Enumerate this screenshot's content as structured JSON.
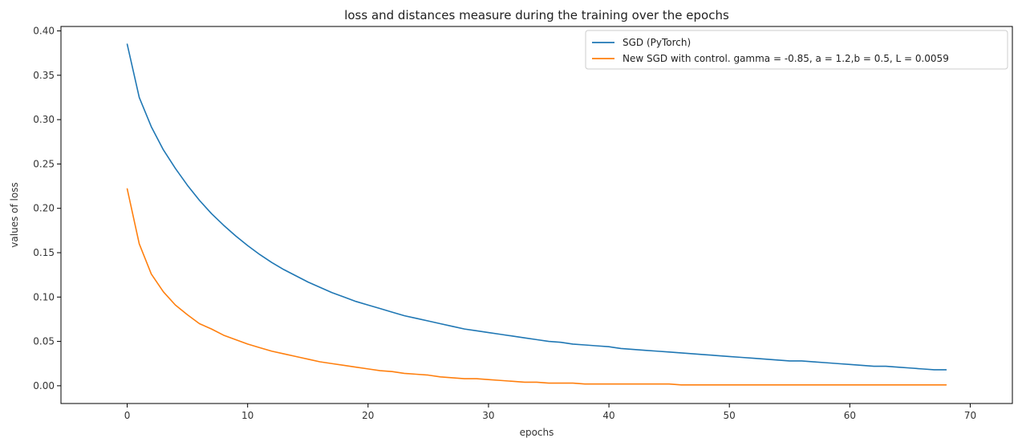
{
  "chart_data": {
    "type": "line",
    "title": "loss and distances measure during the training over the epochs",
    "xlabel": "epochs",
    "ylabel": "values of loss",
    "xlim": [
      -5.5,
      73.5
    ],
    "ylim": [
      -0.02,
      0.405
    ],
    "xticks": [
      0,
      10,
      20,
      30,
      40,
      50,
      60,
      70
    ],
    "xtick_labels": [
      "0",
      "10",
      "20",
      "30",
      "40",
      "50",
      "60",
      "70"
    ],
    "yticks": [
      0.0,
      0.05,
      0.1,
      0.15,
      0.2,
      0.25,
      0.3,
      0.35,
      0.4
    ],
    "ytick_labels": [
      "0.00",
      "0.05",
      "0.10",
      "0.15",
      "0.20",
      "0.25",
      "0.30",
      "0.35",
      "0.40"
    ],
    "grid": false,
    "legend_position": "top-right",
    "series": [
      {
        "name": "SGD (PyTorch)",
        "color": "#1f77b4",
        "x": [
          0,
          1,
          2,
          3,
          4,
          5,
          6,
          7,
          8,
          9,
          10,
          11,
          12,
          13,
          14,
          15,
          16,
          17,
          18,
          19,
          20,
          21,
          22,
          23,
          24,
          25,
          26,
          27,
          28,
          29,
          30,
          31,
          32,
          33,
          34,
          35,
          36,
          37,
          38,
          39,
          40,
          41,
          42,
          43,
          44,
          45,
          46,
          47,
          48,
          49,
          50,
          51,
          52,
          53,
          54,
          55,
          56,
          57,
          58,
          59,
          60,
          61,
          62,
          63,
          64,
          65,
          66,
          67,
          68
        ],
        "values": [
          0.385,
          0.325,
          0.292,
          0.266,
          0.245,
          0.226,
          0.209,
          0.194,
          0.181,
          0.169,
          0.158,
          0.148,
          0.139,
          0.131,
          0.124,
          0.117,
          0.111,
          0.105,
          0.1,
          0.095,
          0.091,
          0.087,
          0.083,
          0.079,
          0.076,
          0.073,
          0.07,
          0.067,
          0.064,
          0.062,
          0.06,
          0.058,
          0.056,
          0.054,
          0.052,
          0.05,
          0.049,
          0.047,
          0.046,
          0.045,
          0.044,
          0.042,
          0.041,
          0.04,
          0.039,
          0.038,
          0.037,
          0.036,
          0.035,
          0.034,
          0.033,
          0.032,
          0.031,
          0.03,
          0.029,
          0.028,
          0.028,
          0.027,
          0.026,
          0.025,
          0.024,
          0.023,
          0.022,
          0.022,
          0.021,
          0.02,
          0.019,
          0.018,
          0.018
        ]
      },
      {
        "name": "New SGD with control. gamma = -0.85, a = 1.2,b = 0.5, L = 0.0059",
        "color": "#ff7f0e",
        "x": [
          0,
          1,
          2,
          3,
          4,
          5,
          6,
          7,
          8,
          9,
          10,
          11,
          12,
          13,
          14,
          15,
          16,
          17,
          18,
          19,
          20,
          21,
          22,
          23,
          24,
          25,
          26,
          27,
          28,
          29,
          30,
          31,
          32,
          33,
          34,
          35,
          36,
          37,
          38,
          39,
          40,
          41,
          42,
          43,
          44,
          45,
          46,
          47,
          48,
          49,
          50,
          51,
          52,
          53,
          54,
          55,
          56,
          57,
          58,
          59,
          60,
          61,
          62,
          63,
          64,
          65,
          66,
          67,
          68
        ],
        "values": [
          0.222,
          0.16,
          0.126,
          0.106,
          0.091,
          0.08,
          0.07,
          0.064,
          0.057,
          0.052,
          0.047,
          0.043,
          0.039,
          0.036,
          0.033,
          0.03,
          0.027,
          0.025,
          0.023,
          0.021,
          0.019,
          0.017,
          0.016,
          0.014,
          0.013,
          0.012,
          0.01,
          0.009,
          0.008,
          0.008,
          0.007,
          0.006,
          0.005,
          0.004,
          0.004,
          0.003,
          0.003,
          0.003,
          0.002,
          0.002,
          0.002,
          0.002,
          0.002,
          0.002,
          0.002,
          0.002,
          0.001,
          0.001,
          0.001,
          0.001,
          0.001,
          0.001,
          0.001,
          0.001,
          0.001,
          0.001,
          0.001,
          0.001,
          0.001,
          0.001,
          0.001,
          0.001,
          0.001,
          0.001,
          0.001,
          0.001,
          0.001,
          0.001,
          0.001
        ]
      }
    ]
  }
}
